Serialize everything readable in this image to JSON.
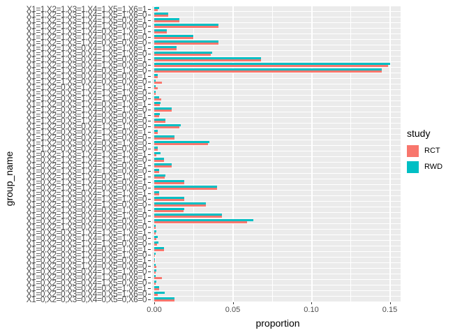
{
  "figure": {
    "background": "#FFFFFF",
    "panel_background": "#EBEBEB",
    "gridline_color": "#FFFFFF",
    "tick_color": "#333333",
    "axis_text_color": "#4D4D4D"
  },
  "x_axis": {
    "title": "proportion",
    "ticks": [
      {
        "label": "0.00",
        "value": 0.0
      },
      {
        "label": "0.05",
        "value": 0.05
      },
      {
        "label": "0.10",
        "value": 0.1
      },
      {
        "label": "0.15",
        "value": 0.15
      }
    ],
    "minor_ticks": [
      0.025,
      0.075,
      0.125
    ]
  },
  "y_axis": {
    "title": "group_name"
  },
  "legend": {
    "title": "study",
    "items": [
      {
        "label": "RCT",
        "color": "#F8766D"
      },
      {
        "label": "RWD",
        "color": "#00BFC4"
      }
    ]
  },
  "chart_data": {
    "type": "bar",
    "orientation": "horizontal",
    "title": "",
    "xlabel": "proportion",
    "ylabel": "group_name",
    "xlim": [
      0,
      0.158
    ],
    "grid": "on",
    "legend_position": "right",
    "bar_order_top_to_bottom": [
      "RWD",
      "RCT"
    ],
    "categories": [
      "X1=1,X2=1,X3=1,X4=1,X5=1,X6=1",
      "X1=1,X2=1,X3=1,X4=1,X5=1,X6=0",
      "X1=1,X2=1,X3=1,X4=1,X5=0,X6=1",
      "X1=1,X2=1,X3=1,X4=1,X5=0,X6=0",
      "X1=1,X2=1,X3=1,X4=0,X5=1,X6=1",
      "X1=1,X2=1,X3=1,X4=0,X5=1,X6=0",
      "X1=1,X2=1,X3=1,X4=0,X5=0,X6=0",
      "X1=1,X2=1,X3=0,X4=1,X5=1,X6=1",
      "X1=1,X2=1,X3=0,X4=1,X5=1,X6=0",
      "X1=1,X2=1,X3=0,X4=1,X5=0,X6=1",
      "X1=1,X2=1,X3=0,X4=1,X5=0,X6=0",
      "X1=1,X2=1,X3=0,X4=0,X5=1,X6=0",
      "X1=1,X2=1,X3=0,X4=0,X5=0,X6=1",
      "X1=1,X2=1,X3=0,X4=0,X5=0,X6=0",
      "X1=1,X2=0,X3=1,X4=1,X5=1,X6=1",
      "X1=1,X2=0,X3=1,X4=1,X5=1,X6=0",
      "X1=1,X2=0,X3=1,X4=1,X5=0,X6=0",
      "X1=1,X2=0,X3=1,X4=0,X5=1,X6=1",
      "X1=1,X2=0,X3=1,X4=0,X5=1,X6=0",
      "X1=1,X2=0,X3=1,X4=0,X5=0,X6=1",
      "X1=1,X2=0,X3=1,X4=0,X5=0,X6=0",
      "X1=1,X2=0,X3=0,X4=1,X5=1,X6=0",
      "X1=1,X2=0,X3=0,X4=1,X5=0,X6=1",
      "X1=1,X2=0,X3=0,X4=1,X5=0,X6=0",
      "X1=1,X2=0,X3=0,X4=0,X5=1,X6=0",
      "X1=1,X2=0,X3=0,X4=0,X5=0,X6=0",
      "X1=0,X2=1,X3=1,X4=1,X5=1,X6=1",
      "X1=0,X2=1,X3=1,X4=1,X5=1,X6=0",
      "X1=0,X2=1,X3=1,X4=1,X5=0,X6=1",
      "X1=0,X2=1,X3=1,X4=1,X5=0,X6=0",
      "X1=0,X2=1,X3=1,X4=0,X5=1,X6=1",
      "X1=0,X2=1,X3=1,X4=0,X5=0,X6=1",
      "X1=0,X2=1,X3=1,X4=0,X5=0,X6=0",
      "X1=0,X2=1,X3=0,X4=1,X5=1,X6=1",
      "X1=0,X2=1,X3=0,X4=1,X5=1,X6=0",
      "X1=0,X2=1,X3=0,X4=1,X5=0,X6=0",
      "X1=0,X2=1,X3=0,X4=0,X5=1,X6=1",
      "X1=0,X2=1,X3=0,X4=0,X5=1,X6=0",
      "X1=0,X2=1,X3=0,X4=0,X5=0,X6=1",
      "X1=0,X2=1,X3=0,X4=0,X5=0,X6=0",
      "X1=0,X2=0,X3=1,X4=1,X5=1,X6=1",
      "X1=0,X2=0,X3=1,X4=1,X5=1,X6=0",
      "X1=0,X2=0,X3=1,X4=1,X5=0,X6=0",
      "X1=0,X2=0,X3=1,X4=0,X5=1,X6=1",
      "X1=0,X2=0,X3=1,X4=0,X5=1,X6=0",
      "X1=0,X2=0,X3=1,X4=0,X5=0,X6=1",
      "X1=0,X2=0,X3=1,X4=0,X5=0,X6=0",
      "X1=0,X2=0,X3=0,X4=1,X5=1,X6=0",
      "X1=0,X2=0,X3=0,X4=1,X5=0,X6=1",
      "X1=0,X2=0,X3=0,X4=1,X5=0,X6=0",
      "X1=0,X2=0,X3=0,X4=0,X5=1,X6=1",
      "X1=0,X2=0,X3=0,X4=0,X5=1,X6=0",
      "X1=0,X2=0,X3=0,X4=0,X5=0,X6=0"
    ],
    "series": [
      {
        "name": "RCT",
        "color": "#F8766D",
        "values": [
          0.002,
          0.009,
          0.016,
          0.041,
          0.008,
          0.025,
          0.041,
          0.014,
          0.036,
          0.068,
          0.149,
          0.145,
          0.002,
          0.005,
          0.002,
          0.001,
          0.0045,
          0.0035,
          0.011,
          0.003,
          0.007,
          0.016,
          0.002,
          0.013,
          0.034,
          0.002,
          0.0015,
          0.006,
          0.011,
          0.003,
          0.0065,
          0.019,
          0.04,
          0.003,
          0.019,
          0.033,
          0.0185,
          0.043,
          0.059,
          0.001,
          0.0009,
          0.0013,
          0.0018,
          0.006,
          0.0005,
          0.0005,
          0.0015,
          0.0008,
          0.005,
          0.0008,
          0.003,
          0.0022,
          0.013
        ]
      },
      {
        "name": "RWD",
        "color": "#00BFC4",
        "values": [
          0.003,
          0.009,
          0.016,
          0.041,
          0.008,
          0.025,
          0.041,
          0.014,
          0.037,
          0.068,
          0.15,
          0.145,
          0.002,
          0.001,
          0.001,
          0.001,
          0.003,
          0.004,
          0.011,
          0.0035,
          0.007,
          0.017,
          0.002,
          0.013,
          0.035,
          0.002,
          0.004,
          0.006,
          0.011,
          0.003,
          0.007,
          0.019,
          0.04,
          0.003,
          0.019,
          0.033,
          0.019,
          0.043,
          0.063,
          0.001,
          0.0013,
          0.002,
          0.0027,
          0.006,
          0.001,
          0.0005,
          0.001,
          0.0012,
          0.0008,
          0.0015,
          0.003,
          0.0066,
          0.013
        ]
      }
    ]
  }
}
